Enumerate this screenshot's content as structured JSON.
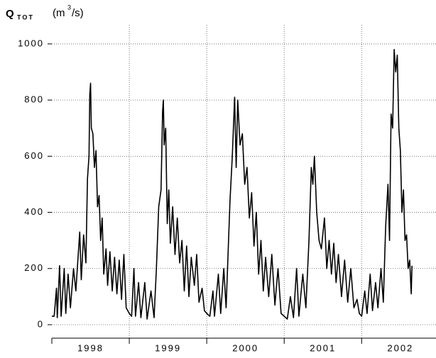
{
  "chart_data": {
    "type": "line",
    "ylabel_symbol": "Q",
    "ylabel_subscript": "TOT",
    "ylabel_unit_start": "(m",
    "ylabel_unit_power": "3",
    "ylabel_unit_end": "/s)",
    "color": "#000000",
    "ylim": [
      -48,
      1068
    ],
    "yticks": [
      0,
      200,
      400,
      600,
      800,
      1000
    ],
    "xlim": [
      1998,
      2002.96
    ],
    "xticks": [
      {
        "value": 1998.5,
        "label": "1998"
      },
      {
        "value": 1999.5,
        "label": "1999"
      },
      {
        "value": 2000.5,
        "label": "2000"
      },
      {
        "value": 2001.5,
        "label": "2001"
      },
      {
        "value": 2002.5,
        "label": "2002"
      }
    ],
    "xgrid": [
      1998,
      1999,
      2000,
      2001,
      2002
    ],
    "grid": true,
    "x": [
      1998.0,
      1998.03,
      1998.06,
      1998.07,
      1998.1,
      1998.12,
      1998.16,
      1998.18,
      1998.21,
      1998.24,
      1998.28,
      1998.31,
      1998.36,
      1998.38,
      1998.41,
      1998.44,
      1998.46,
      1998.48,
      1998.49,
      1998.5,
      1998.51,
      1998.53,
      1998.55,
      1998.57,
      1998.59,
      1998.61,
      1998.63,
      1998.65,
      1998.67,
      1998.7,
      1998.72,
      1998.75,
      1998.78,
      1998.81,
      1998.84,
      1998.87,
      1998.9,
      1998.93,
      1998.96,
      1999.0,
      1999.03,
      1999.06,
      1999.08,
      1999.12,
      1999.15,
      1999.2,
      1999.23,
      1999.28,
      1999.32,
      1999.35,
      1999.38,
      1999.41,
      1999.43,
      1999.44,
      1999.45,
      1999.47,
      1999.49,
      1999.51,
      1999.53,
      1999.56,
      1999.59,
      1999.62,
      1999.65,
      1999.68,
      1999.71,
      1999.74,
      1999.77,
      1999.8,
      1999.84,
      1999.87,
      1999.9,
      1999.94,
      1999.97,
      2000.0,
      2000.04,
      2000.08,
      2000.1,
      2000.15,
      2000.18,
      2000.22,
      2000.25,
      2000.3,
      2000.33,
      2000.36,
      2000.38,
      2000.4,
      2000.43,
      2000.46,
      2000.49,
      2000.52,
      2000.55,
      2000.58,
      2000.61,
      2000.64,
      2000.67,
      2000.7,
      2000.73,
      2000.76,
      2000.8,
      2000.84,
      2000.88,
      2000.92,
      2000.96,
      2001.0,
      2001.04,
      2001.08,
      2001.12,
      2001.16,
      2001.19,
      2001.24,
      2001.28,
      2001.32,
      2001.35,
      2001.37,
      2001.39,
      2001.42,
      2001.45,
      2001.48,
      2001.52,
      2001.55,
      2001.58,
      2001.61,
      2001.64,
      2001.67,
      2001.7,
      2001.74,
      2001.78,
      2001.82,
      2001.86,
      2001.9,
      2001.94,
      2001.97,
      2002.0,
      2002.04,
      2002.07,
      2002.11,
      2002.14,
      2002.18,
      2002.21,
      2002.25,
      2002.28,
      2002.31,
      2002.34,
      2002.36,
      2002.38,
      2002.4,
      2002.42,
      2002.44,
      2002.46,
      2002.48,
      2002.5,
      2002.52,
      2002.54,
      2002.56,
      2002.58,
      2002.6,
      2002.62,
      2002.64,
      2002.65
    ],
    "values": [
      30,
      30,
      130,
      25,
      210,
      30,
      200,
      40,
      180,
      60,
      200,
      120,
      330,
      160,
      320,
      220,
      520,
      600,
      820,
      860,
      700,
      680,
      560,
      620,
      420,
      460,
      300,
      380,
      180,
      270,
      140,
      260,
      120,
      240,
      110,
      230,
      90,
      250,
      60,
      40,
      30,
      200,
      30,
      150,
      25,
      150,
      20,
      120,
      25,
      200,
      420,
      480,
      760,
      800,
      640,
      700,
      360,
      480,
      290,
      420,
      250,
      380,
      220,
      300,
      120,
      280,
      100,
      240,
      140,
      250,
      80,
      130,
      50,
      40,
      30,
      120,
      30,
      180,
      40,
      200,
      60,
      440,
      600,
      810,
      560,
      800,
      640,
      680,
      500,
      560,
      380,
      470,
      280,
      400,
      180,
      300,
      120,
      240,
      100,
      250,
      70,
      200,
      40,
      30,
      20,
      100,
      25,
      200,
      30,
      180,
      60,
      300,
      560,
      500,
      600,
      400,
      300,
      270,
      380,
      200,
      300,
      180,
      290,
      150,
      250,
      100,
      230,
      80,
      200,
      60,
      90,
      40,
      30,
      120,
      40,
      180,
      50,
      150,
      60,
      200,
      80,
      350,
      500,
      300,
      750,
      700,
      980,
      900,
      960,
      700,
      620,
      400,
      480,
      300,
      320,
      200,
      230,
      110,
      210
    ]
  }
}
